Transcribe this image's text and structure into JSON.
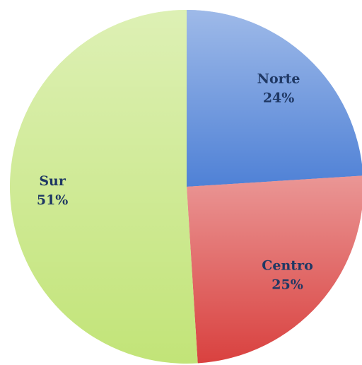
{
  "chart_data": {
    "type": "pie",
    "categories": [
      "Norte",
      "Centro",
      "Sur"
    ],
    "values": [
      24,
      25,
      51
    ],
    "value_labels": [
      "24%",
      "25%",
      "51%"
    ],
    "colors": [
      "#4f81d6",
      "#d9413f",
      "#c2e478"
    ]
  }
}
